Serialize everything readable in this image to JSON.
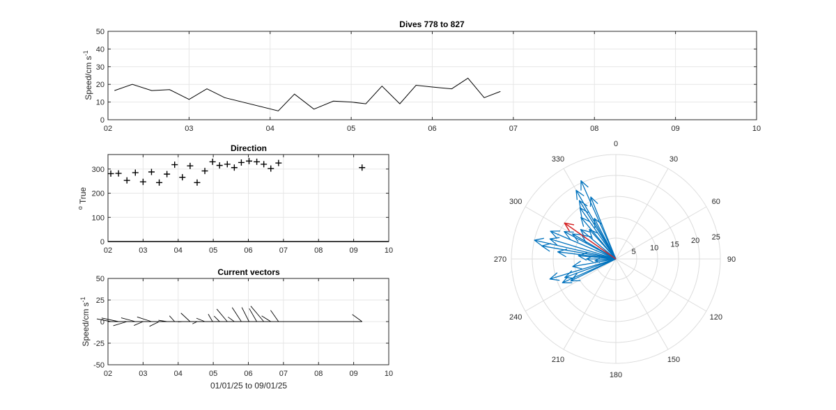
{
  "chart_data": [
    {
      "id": "speed",
      "type": "line",
      "title": "Dives 778 to 827",
      "ylabel": "Speed/cm s",
      "ylabel_superscript": "-1",
      "xlim": [
        2,
        10
      ],
      "ylim": [
        0,
        50
      ],
      "xticks": [
        "02",
        "03",
        "04",
        "05",
        "06",
        "07",
        "08",
        "09",
        "10"
      ],
      "yticks": [
        "0",
        "10",
        "20",
        "30",
        "40",
        "50"
      ],
      "grid": true,
      "x": [
        2.08,
        2.3,
        2.54,
        2.76,
        3.0,
        3.22,
        3.44,
        4.1,
        4.3,
        4.54,
        4.78,
        5.0,
        5.18,
        5.38,
        5.6,
        5.8,
        6.0,
        6.24,
        6.44,
        6.64,
        6.84
      ],
      "y": [
        16.5,
        20,
        16.5,
        17,
        11.5,
        17.5,
        12.5,
        5,
        14.5,
        6,
        10.5,
        10,
        9,
        19,
        9,
        19.5,
        18.5,
        17.5,
        23.5,
        12.5,
        16
      ]
    },
    {
      "id": "direction",
      "type": "scatter",
      "title": "Direction",
      "ylabel": "True",
      "ylabel_prefix": "o",
      "xlim": [
        2,
        10
      ],
      "ylim": [
        0,
        360
      ],
      "xticks": [
        "02",
        "03",
        "04",
        "05",
        "06",
        "07",
        "08",
        "09",
        "10"
      ],
      "yticks": [
        "0",
        "100",
        "200",
        "300"
      ],
      "grid": true,
      "marker": "+",
      "x": [
        2.08,
        2.3,
        2.54,
        2.78,
        3.0,
        3.24,
        3.46,
        3.68,
        3.9,
        4.12,
        4.34,
        4.54,
        4.76,
        4.98,
        5.18,
        5.4,
        5.6,
        5.8,
        6.02,
        6.24,
        6.44,
        6.64,
        6.86,
        9.24
      ],
      "y": [
        281,
        282,
        253,
        285,
        247,
        288,
        244,
        279,
        318,
        266,
        313,
        244,
        292,
        330,
        315,
        320,
        306,
        327,
        333,
        330,
        320,
        302,
        325,
        306
      ]
    },
    {
      "id": "vectors",
      "type": "line",
      "title": "Current vectors",
      "ylabel": "Speed/cm s",
      "ylabel_superscript": "-1",
      "xlabel": "01/01/25 to 09/01/25",
      "xlim": [
        2,
        10
      ],
      "ylim": [
        -50,
        50
      ],
      "xticks": [
        "02",
        "03",
        "04",
        "05",
        "06",
        "07",
        "08",
        "09",
        "10"
      ],
      "yticks": [
        "-50",
        "-25",
        "0",
        "25",
        "50"
      ],
      "grid": true,
      "baseline_end": 9.24,
      "sticks": [
        {
          "x": 2.08,
          "dir": 281,
          "speed": 16.5
        },
        {
          "x": 2.3,
          "dir": 282,
          "speed": 20
        },
        {
          "x": 2.54,
          "dir": 253,
          "speed": 16.5
        },
        {
          "x": 2.78,
          "dir": 285,
          "speed": 17
        },
        {
          "x": 3.0,
          "dir": 247,
          "speed": 11.5
        },
        {
          "x": 3.24,
          "dir": 288,
          "speed": 17.5
        },
        {
          "x": 3.46,
          "dir": 244,
          "speed": 12.5
        },
        {
          "x": 3.68,
          "dir": 279,
          "speed": 10
        },
        {
          "x": 3.9,
          "dir": 318,
          "speed": 9
        },
        {
          "x": 4.12,
          "dir": 266,
          "speed": 5
        },
        {
          "x": 4.34,
          "dir": 313,
          "speed": 14.5
        },
        {
          "x": 4.54,
          "dir": 244,
          "speed": 6
        },
        {
          "x": 4.76,
          "dir": 292,
          "speed": 10.5
        },
        {
          "x": 4.98,
          "dir": 330,
          "speed": 10
        },
        {
          "x": 5.18,
          "dir": 315,
          "speed": 9
        },
        {
          "x": 5.4,
          "dir": 320,
          "speed": 19
        },
        {
          "x": 5.6,
          "dir": 306,
          "speed": 9
        },
        {
          "x": 5.8,
          "dir": 327,
          "speed": 19.5
        },
        {
          "x": 6.02,
          "dir": 333,
          "speed": 18.5
        },
        {
          "x": 6.24,
          "dir": 330,
          "speed": 17.5
        },
        {
          "x": 6.44,
          "dir": 320,
          "speed": 23.5
        },
        {
          "x": 6.64,
          "dir": 302,
          "speed": 12.5
        },
        {
          "x": 6.86,
          "dir": 325,
          "speed": 16
        },
        {
          "x": 9.24,
          "dir": 306,
          "speed": 14
        }
      ]
    },
    {
      "id": "polar",
      "type": "polar-compass",
      "rmax": 25,
      "rticks": [
        "5",
        "10",
        "15",
        "20",
        "25"
      ],
      "thetaticks": [
        "0",
        "30",
        "60",
        "90",
        "120",
        "150",
        "180",
        "210",
        "240",
        "270",
        "300",
        "330"
      ],
      "grid": true,
      "arrow_color": "#0072bd",
      "mean_color": "#d62728",
      "arrows": [
        {
          "dir": 336,
          "speed": 20.5
        },
        {
          "dir": 330,
          "speed": 19
        },
        {
          "dir": 338,
          "speed": 16
        },
        {
          "dir": 328,
          "speed": 16.5
        },
        {
          "dir": 325,
          "speed": 15
        },
        {
          "dir": 320,
          "speed": 13
        },
        {
          "dir": 332,
          "speed": 11
        },
        {
          "dir": 318,
          "speed": 9.5
        },
        {
          "dir": 310,
          "speed": 11
        },
        {
          "dir": 305,
          "speed": 10
        },
        {
          "dir": 300,
          "speed": 12
        },
        {
          "dir": 298,
          "speed": 14
        },
        {
          "dir": 293,
          "speed": 17
        },
        {
          "dir": 287,
          "speed": 16.5
        },
        {
          "dir": 283,
          "speed": 20
        },
        {
          "dir": 280,
          "speed": 18
        },
        {
          "dir": 277,
          "speed": 14
        },
        {
          "dir": 275,
          "speed": 9
        },
        {
          "dir": 270,
          "speed": 7
        },
        {
          "dir": 265,
          "speed": 5
        },
        {
          "dir": 260,
          "speed": 10.5
        },
        {
          "dir": 253,
          "speed": 16.5
        },
        {
          "dir": 250,
          "speed": 13
        },
        {
          "dir": 246,
          "speed": 14
        },
        {
          "dir": 244,
          "speed": 12
        }
      ],
      "mean_arrow": {
        "dir": 305,
        "speed": 15
      }
    }
  ]
}
